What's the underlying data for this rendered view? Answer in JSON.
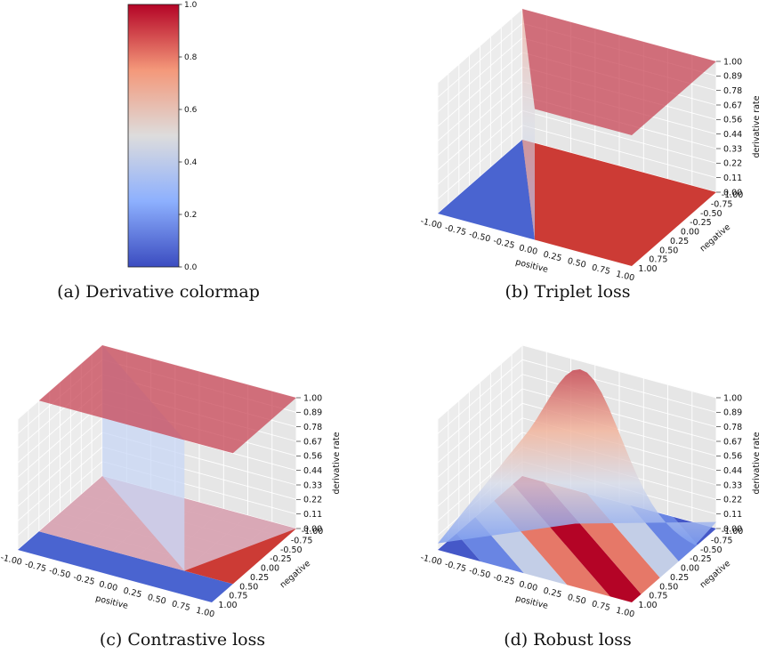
{
  "chart_data": [
    {
      "type": "heatmap",
      "subplot": "a",
      "caption": "(a) Derivative colormap",
      "colormap": "coolwarm",
      "range": [
        0.0,
        1.0
      ],
      "ticks": [
        "0.0",
        "0.2",
        "0.4",
        "0.6",
        "0.8",
        "1.0"
      ]
    },
    {
      "type": "surface3d",
      "subplot": "b",
      "caption": "(b) Triplet loss",
      "xlabel": "positive",
      "ylabel": "negative",
      "zlabel": "derivative rate",
      "x_ticks": [
        "-1.00",
        "-0.75",
        "-0.50",
        "-0.25",
        "0.00",
        "0.25",
        "0.50",
        "0.75",
        "1.00"
      ],
      "y_ticks": [
        "-1.00",
        "-0.75",
        "-0.50",
        "-0.25",
        "0.00",
        "0.25",
        "0.50",
        "0.75",
        "1.00"
      ],
      "z_ticks": [
        "0.00",
        "0.11",
        "0.22",
        "0.33",
        "0.44",
        "0.56",
        "0.67",
        "0.78",
        "0.89",
        "1.00"
      ],
      "xlim": [
        -1,
        1
      ],
      "ylim": [
        -1,
        1
      ],
      "zlim": [
        0,
        1
      ],
      "grid": true
    },
    {
      "type": "surface3d",
      "subplot": "c",
      "caption": "(c) Contrastive loss",
      "xlabel": "positive",
      "ylabel": "negative",
      "zlabel": "derivative rate",
      "x_ticks": [
        "-1.00",
        "-0.75",
        "-0.50",
        "-0.25",
        "0.00",
        "0.25",
        "0.50",
        "0.75",
        "1.00"
      ],
      "y_ticks": [
        "-1.00",
        "-0.75",
        "-0.50",
        "-0.25",
        "0.00",
        "0.25",
        "0.50",
        "0.75",
        "1.00"
      ],
      "z_ticks": [
        "0.00",
        "0.11",
        "0.22",
        "0.33",
        "0.44",
        "0.56",
        "0.67",
        "0.78",
        "0.89",
        "1.00"
      ],
      "xlim": [
        -1,
        1
      ],
      "ylim": [
        -1,
        1
      ],
      "zlim": [
        0,
        1
      ],
      "grid": true
    },
    {
      "type": "surface3d",
      "subplot": "d",
      "caption": "(d) Robust loss",
      "xlabel": "positive",
      "ylabel": "negative",
      "zlabel": "derivative rate",
      "x_ticks": [
        "-1.00",
        "-0.75",
        "-0.50",
        "-0.25",
        "0.00",
        "0.25",
        "0.50",
        "0.75",
        "1.00"
      ],
      "y_ticks": [
        "-1.00",
        "-0.75",
        "-0.50",
        "-0.25",
        "0.00",
        "0.25",
        "0.50",
        "0.75",
        "1.00"
      ],
      "z_ticks": [
        "0.00",
        "0.11",
        "0.22",
        "0.33",
        "0.44",
        "0.56",
        "0.67",
        "0.78",
        "0.89",
        "1.00"
      ],
      "xlim": [
        -1,
        1
      ],
      "ylim": [
        -1,
        1
      ],
      "zlim": [
        0,
        1
      ],
      "grid": true
    }
  ]
}
